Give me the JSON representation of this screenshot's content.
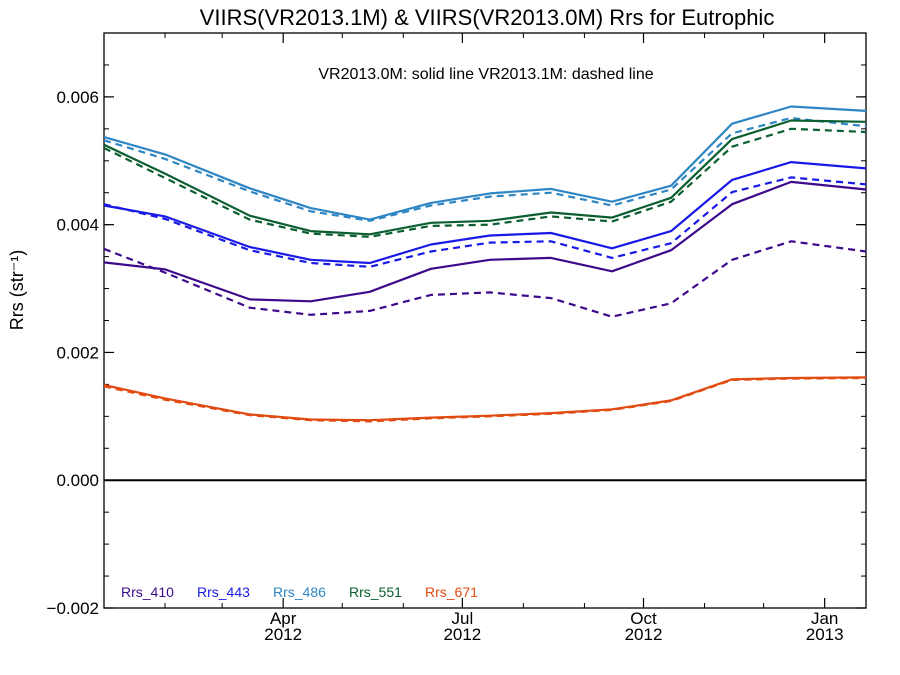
{
  "chart_data": {
    "type": "line",
    "title": "VIIRS(VR2013.1M) & VIIRS(VR2013.0M)  Rrs for Eutrophic",
    "annotation": "VR2013.0M: solid line   VR2013.1M: dashed line",
    "ylabel": "Rrs (str⁻¹)",
    "ylim": [
      -0.002,
      0.007
    ],
    "yticks": [
      "−0.002",
      "0.000",
      "0.002",
      "0.004",
      "0.006"
    ],
    "ytick_values": [
      -0.002,
      0.0,
      0.002,
      0.004,
      0.006
    ],
    "xlim": [
      "2012-01-01",
      "2013-01-22"
    ],
    "xticks": [
      {
        "date": "2012-04-01",
        "month": "Apr",
        "year": "2012"
      },
      {
        "date": "2012-07-01",
        "month": "Jul",
        "year": "2012"
      },
      {
        "date": "2012-10-01",
        "month": "Oct",
        "year": "2012"
      },
      {
        "date": "2013-01-01",
        "month": "Jan",
        "year": "2013"
      }
    ],
    "x": [
      "2012-01-01",
      "2012-02-01",
      "2012-03-15",
      "2012-04-15",
      "2012-05-15",
      "2012-06-15",
      "2012-07-15",
      "2012-08-15",
      "2012-09-15",
      "2012-10-15",
      "2012-11-15",
      "2012-12-15",
      "2013-01-22"
    ],
    "zero_line": true,
    "grid": false,
    "legend_position": "bottom-left",
    "series": [
      {
        "name": "Rrs_410",
        "color": "#3d0a8c",
        "solid": [
          0.00341,
          0.0033,
          0.00283,
          0.0028,
          0.00295,
          0.00331,
          0.00345,
          0.00348,
          0.00327,
          0.0036,
          0.00432,
          0.00467,
          0.00455
        ],
        "dashed": [
          0.00362,
          0.00325,
          0.0027,
          0.00259,
          0.00265,
          0.0029,
          0.00294,
          0.00285,
          0.00256,
          0.00277,
          0.00345,
          0.00374,
          0.00358
        ]
      },
      {
        "name": "Rrs_443",
        "color": "#1a1ae6",
        "solid": [
          0.0043,
          0.00413,
          0.00365,
          0.00345,
          0.0034,
          0.00369,
          0.00383,
          0.00387,
          0.00363,
          0.0039,
          0.0047,
          0.00498,
          0.00488
        ],
        "dashed": [
          0.00432,
          0.00409,
          0.0036,
          0.0034,
          0.00334,
          0.00358,
          0.00372,
          0.00374,
          0.00348,
          0.00371,
          0.00451,
          0.00474,
          0.00463
        ]
      },
      {
        "name": "Rrs_486",
        "color": "#2f86c4",
        "solid": [
          0.00537,
          0.0051,
          0.00457,
          0.00426,
          0.00408,
          0.00434,
          0.00449,
          0.00456,
          0.00436,
          0.00461,
          0.00558,
          0.00585,
          0.00578
        ],
        "dashed": [
          0.00532,
          0.00503,
          0.00452,
          0.00421,
          0.00406,
          0.0043,
          0.00444,
          0.0045,
          0.0043,
          0.00455,
          0.00543,
          0.00567,
          0.00554
        ]
      },
      {
        "name": "Rrs_551",
        "color": "#0b5e2f",
        "solid": [
          0.00525,
          0.0048,
          0.00414,
          0.0039,
          0.00385,
          0.00403,
          0.00406,
          0.00419,
          0.00411,
          0.00442,
          0.00534,
          0.00563,
          0.00561
        ],
        "dashed": [
          0.0052,
          0.00473,
          0.00408,
          0.00386,
          0.00381,
          0.00398,
          0.004,
          0.00413,
          0.00405,
          0.00436,
          0.00522,
          0.0055,
          0.00545
        ]
      },
      {
        "name": "Rrs_671",
        "color": "#e14a10",
        "solid": [
          0.00149,
          0.00128,
          0.00103,
          0.00095,
          0.00094,
          0.00098,
          0.00101,
          0.00105,
          0.00111,
          0.00125,
          0.00158,
          0.0016,
          0.00161
        ],
        "dashed": [
          0.00147,
          0.00126,
          0.00102,
          0.00094,
          0.00092,
          0.00097,
          0.001,
          0.00104,
          0.0011,
          0.00124,
          0.00157,
          0.00159,
          0.0016
        ]
      }
    ]
  }
}
